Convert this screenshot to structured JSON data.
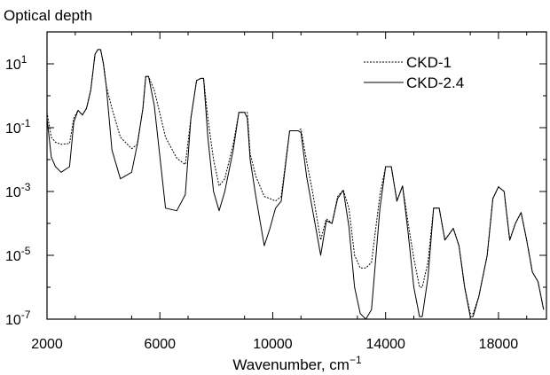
{
  "chart_data": {
    "type": "line",
    "title": "",
    "ylabel": "Optical depth",
    "xlabel": "Wavenumber, cm",
    "xlabel_sup": "−1",
    "xlim": [
      2000,
      19700
    ],
    "ylim": [
      1e-07,
      100
    ],
    "yscale": "log",
    "grid": false,
    "legend_position": "top-right",
    "x_ticks": [
      2000,
      6000,
      10000,
      14000,
      18000
    ],
    "x_tick_labels": [
      "2000",
      "6000",
      "10000",
      "14000",
      "18000"
    ],
    "y_ticks": [
      10.0,
      0.1,
      0.001,
      1e-05,
      1e-07
    ],
    "y_tick_labels": [
      {
        "base": "10",
        "exp": "1"
      },
      {
        "base": "10",
        "exp": "-1"
      },
      {
        "base": "10",
        "exp": "-3"
      },
      {
        "base": "10",
        "exp": "-5"
      },
      {
        "base": "10",
        "exp": "-7"
      }
    ],
    "series": [
      {
        "name": "CKD-1",
        "style": "dotted",
        "x": [
          2000,
          2150,
          2300,
          2500,
          2800,
          2950,
          3100,
          3250,
          3400,
          3550,
          3700,
          3800,
          3900,
          4000,
          4100,
          4300,
          4600,
          5000,
          5200,
          5400,
          5500,
          5600,
          5800,
          6200,
          6600,
          6900,
          7100,
          7300,
          7450,
          7550,
          7700,
          7900,
          8100,
          8300,
          8600,
          8800,
          9000,
          9100,
          9200,
          9400,
          9700,
          9900,
          10100,
          10300,
          10600,
          10800,
          10900,
          11000,
          11200,
          11400,
          11700,
          11900,
          12100,
          12300,
          12500,
          12700,
          12900,
          13100,
          13300,
          13500,
          13800,
          14000,
          14200,
          14400,
          14600,
          14800,
          15000,
          15200,
          15300,
          15500,
          15700,
          15900,
          16100,
          16400,
          16600,
          16800,
          17000,
          17100,
          17300,
          17600,
          17800,
          18000,
          18200,
          18400,
          18600,
          18800,
          19000,
          19200,
          19400,
          19600
        ],
        "y": [
          0.3,
          0.05,
          0.035,
          0.03,
          0.032,
          0.2,
          0.35,
          0.25,
          0.4,
          1.5,
          20,
          28,
          28,
          10,
          2,
          0.4,
          0.05,
          0.022,
          0.03,
          0.4,
          4,
          4,
          1.5,
          0.05,
          0.011,
          0.007,
          0.2,
          3,
          3.5,
          3.5,
          0.2,
          0.01,
          0.0015,
          0.0025,
          0.03,
          0.3,
          0.3,
          0.3,
          0.015,
          0.003,
          0.0007,
          0.0006,
          0.0005,
          0.0007,
          0.08,
          0.08,
          0.08,
          0.09,
          0.009,
          0.0011,
          3e-05,
          0.00014,
          0.0001,
          0.0007,
          0.0011,
          0.0003,
          1e-05,
          4e-06,
          4e-06,
          6e-06,
          0.0008,
          0.006,
          0.006,
          0.0005,
          0.0015,
          0.0001,
          8e-06,
          1e-06,
          1e-06,
          6e-06,
          0.0003,
          0.0003,
          3e-05,
          7e-05,
          2e-05,
          1e-06,
          1.5e-07,
          1.5e-07,
          5e-07,
          1e-05,
          0.0006,
          0.0014,
          0.001,
          3e-05,
          0.0001,
          0.00022,
          3e-05,
          3e-06,
          1.5e-06,
          2e-07
        ]
      },
      {
        "name": "CKD-2.4",
        "style": "solid",
        "x": [
          2000,
          2150,
          2300,
          2500,
          2800,
          2950,
          3100,
          3250,
          3400,
          3550,
          3700,
          3800,
          3900,
          4000,
          4100,
          4300,
          4600,
          5000,
          5200,
          5400,
          5500,
          5600,
          5800,
          6200,
          6600,
          6900,
          7100,
          7300,
          7450,
          7550,
          7700,
          7900,
          8100,
          8300,
          8600,
          8800,
          9000,
          9100,
          9200,
          9400,
          9700,
          9900,
          10100,
          10300,
          10600,
          10800,
          10900,
          11000,
          11200,
          11400,
          11700,
          11900,
          12100,
          12300,
          12500,
          12700,
          12900,
          13100,
          13300,
          13500,
          13800,
          14000,
          14200,
          14400,
          14600,
          14800,
          15000,
          15200,
          15300,
          15500,
          15700,
          15900,
          16100,
          16400,
          16600,
          16800,
          17000,
          17100,
          17300,
          17600,
          17800,
          18000,
          18200,
          18400,
          18600,
          18800,
          19000,
          19200,
          19400,
          19600
        ],
        "y": [
          0.2,
          0.012,
          0.006,
          0.004,
          0.006,
          0.15,
          0.35,
          0.25,
          0.4,
          1.5,
          20,
          28,
          28,
          10,
          2,
          0.02,
          0.0025,
          0.004,
          0.03,
          0.4,
          4,
          4,
          0.5,
          0.0003,
          0.00025,
          0.0008,
          0.2,
          3,
          3.5,
          3.5,
          0.05,
          0.001,
          0.00025,
          0.001,
          0.02,
          0.3,
          0.3,
          0.2,
          0.01,
          0.0007,
          2e-05,
          7e-05,
          0.0003,
          0.0005,
          0.08,
          0.08,
          0.08,
          0.07,
          0.003,
          0.0003,
          1e-05,
          0.00012,
          0.0001,
          0.0006,
          0.0011,
          8e-05,
          1e-06,
          1.5e-07,
          8e-08,
          2e-07,
          0.0003,
          0.006,
          0.006,
          0.0005,
          0.0015,
          5e-05,
          1e-06,
          1.2e-07,
          1.2e-07,
          2e-06,
          0.0003,
          0.0003,
          3e-05,
          7e-05,
          2e-05,
          1e-06,
          1.2e-07,
          1.2e-07,
          5e-07,
          1e-05,
          0.0006,
          0.0014,
          0.001,
          3e-05,
          0.0001,
          0.00022,
          3e-05,
          3e-06,
          1.5e-06,
          2e-07
        ]
      }
    ]
  }
}
